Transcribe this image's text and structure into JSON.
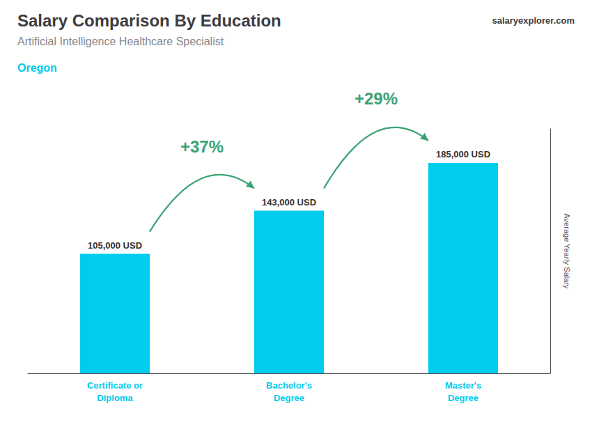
{
  "chart_data": {
    "type": "bar",
    "title": "Salary Comparison By Education",
    "subtitle": "Artificial Intelligence Healthcare Specialist",
    "location": "Oregon",
    "source": "salaryexplorer.com",
    "ylabel": "Average Yearly Salary",
    "categories": [
      "Certificate or\nDiploma",
      "Bachelor's\nDegree",
      "Master's\nDegree"
    ],
    "values": [
      105000,
      143000,
      185000
    ],
    "value_labels": [
      "105,000 USD",
      "143,000 USD",
      "185,000 USD"
    ],
    "data_labels": true,
    "arrow_labels": [
      "+37%",
      "+29%"
    ],
    "color": "#00CCEE",
    "ylim": [
      0,
      215000
    ],
    "tick_labels": "x",
    "grid": false
  }
}
